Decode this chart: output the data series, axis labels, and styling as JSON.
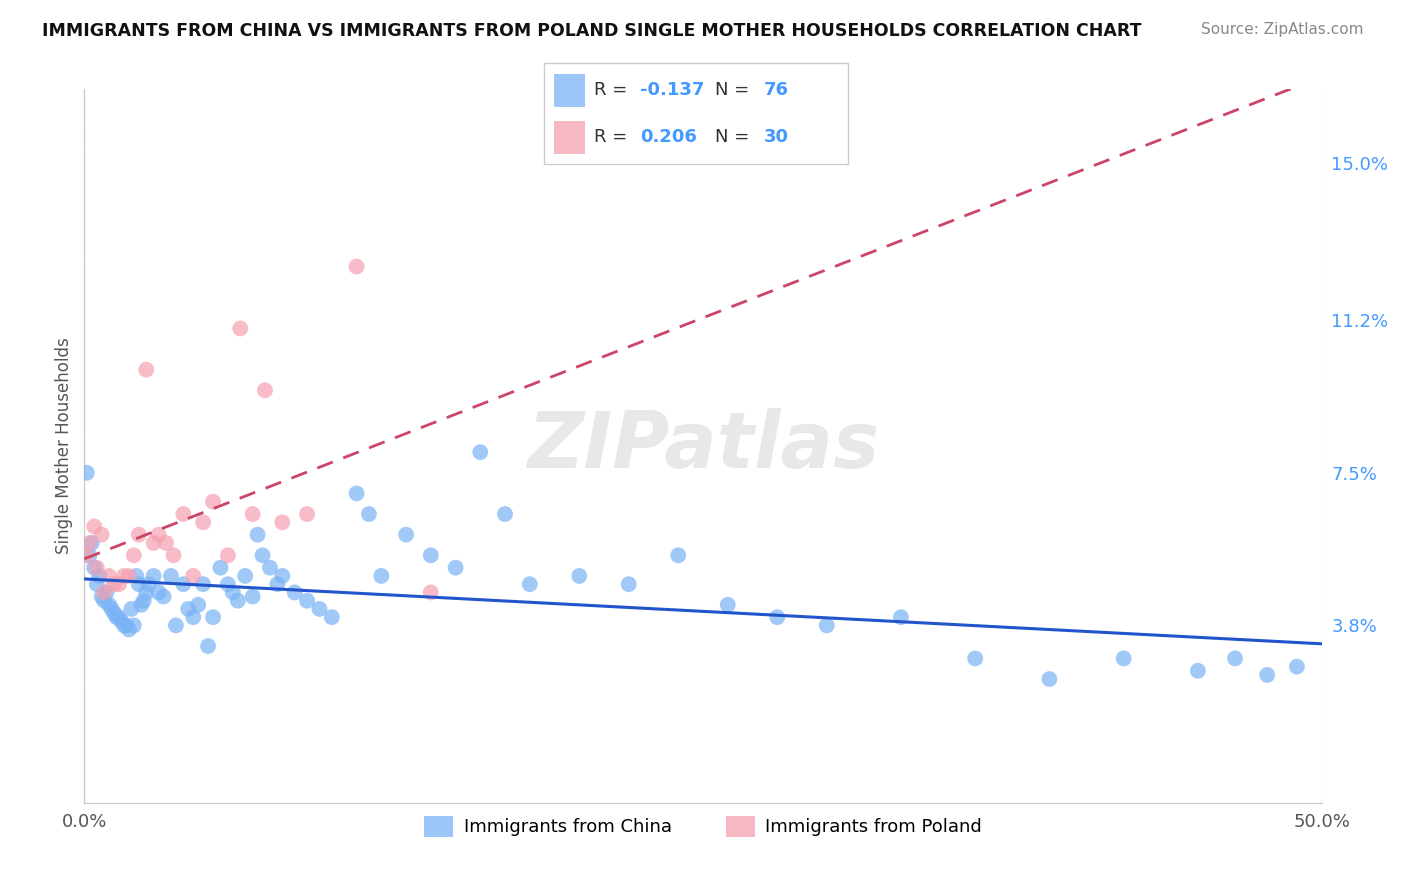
{
  "title": "IMMIGRANTS FROM CHINA VS IMMIGRANTS FROM POLAND SINGLE MOTHER HOUSEHOLDS CORRELATION CHART",
  "source": "Source: ZipAtlas.com",
  "ylabel": "Single Mother Households",
  "yticks": [
    0.038,
    0.075,
    0.112,
    0.15
  ],
  "ytick_labels": [
    "3.8%",
    "7.5%",
    "11.2%",
    "15.0%"
  ],
  "xlim": [
    0.0,
    0.5
  ],
  "ylim": [
    -0.005,
    0.168
  ],
  "china_R": -0.137,
  "china_N": 76,
  "poland_R": 0.206,
  "poland_N": 30,
  "china_color": "#7ab3f5",
  "poland_color": "#f5a0b0",
  "china_line_color": "#2255cc",
  "poland_line_color": "#cc4466",
  "watermark": "ZIPatlas",
  "china_x": [
    0.001,
    0.002,
    0.003,
    0.004,
    0.005,
    0.006,
    0.007,
    0.008,
    0.009,
    0.01,
    0.011,
    0.012,
    0.013,
    0.014,
    0.015,
    0.016,
    0.017,
    0.018,
    0.019,
    0.02,
    0.021,
    0.022,
    0.023,
    0.024,
    0.025,
    0.026,
    0.028,
    0.03,
    0.032,
    0.035,
    0.037,
    0.04,
    0.042,
    0.044,
    0.046,
    0.048,
    0.05,
    0.052,
    0.055,
    0.058,
    0.06,
    0.062,
    0.065,
    0.068,
    0.07,
    0.072,
    0.075,
    0.078,
    0.08,
    0.085,
    0.09,
    0.095,
    0.1,
    0.11,
    0.115,
    0.12,
    0.13,
    0.14,
    0.15,
    0.16,
    0.17,
    0.18,
    0.2,
    0.22,
    0.24,
    0.26,
    0.28,
    0.3,
    0.33,
    0.36,
    0.39,
    0.42,
    0.45,
    0.465,
    0.478,
    0.49
  ],
  "china_y": [
    0.075,
    0.055,
    0.058,
    0.052,
    0.048,
    0.05,
    0.045,
    0.044,
    0.046,
    0.043,
    0.042,
    0.041,
    0.04,
    0.04,
    0.039,
    0.038,
    0.038,
    0.037,
    0.042,
    0.038,
    0.05,
    0.048,
    0.043,
    0.044,
    0.046,
    0.048,
    0.05,
    0.046,
    0.045,
    0.05,
    0.038,
    0.048,
    0.042,
    0.04,
    0.043,
    0.048,
    0.033,
    0.04,
    0.052,
    0.048,
    0.046,
    0.044,
    0.05,
    0.045,
    0.06,
    0.055,
    0.052,
    0.048,
    0.05,
    0.046,
    0.044,
    0.042,
    0.04,
    0.07,
    0.065,
    0.05,
    0.06,
    0.055,
    0.052,
    0.08,
    0.065,
    0.048,
    0.05,
    0.048,
    0.055,
    0.043,
    0.04,
    0.038,
    0.04,
    0.03,
    0.025,
    0.03,
    0.027,
    0.03,
    0.026,
    0.028
  ],
  "poland_x": [
    0.001,
    0.002,
    0.004,
    0.005,
    0.007,
    0.008,
    0.01,
    0.012,
    0.014,
    0.016,
    0.018,
    0.02,
    0.022,
    0.025,
    0.028,
    0.03,
    0.033,
    0.036,
    0.04,
    0.044,
    0.048,
    0.052,
    0.058,
    0.063,
    0.068,
    0.073,
    0.08,
    0.09,
    0.11,
    0.14
  ],
  "poland_y": [
    0.055,
    0.058,
    0.062,
    0.052,
    0.06,
    0.046,
    0.05,
    0.048,
    0.048,
    0.05,
    0.05,
    0.055,
    0.06,
    0.1,
    0.058,
    0.06,
    0.058,
    0.055,
    0.065,
    0.05,
    0.063,
    0.068,
    0.055,
    0.11,
    0.065,
    0.095,
    0.063,
    0.065,
    0.125,
    0.046
  ]
}
